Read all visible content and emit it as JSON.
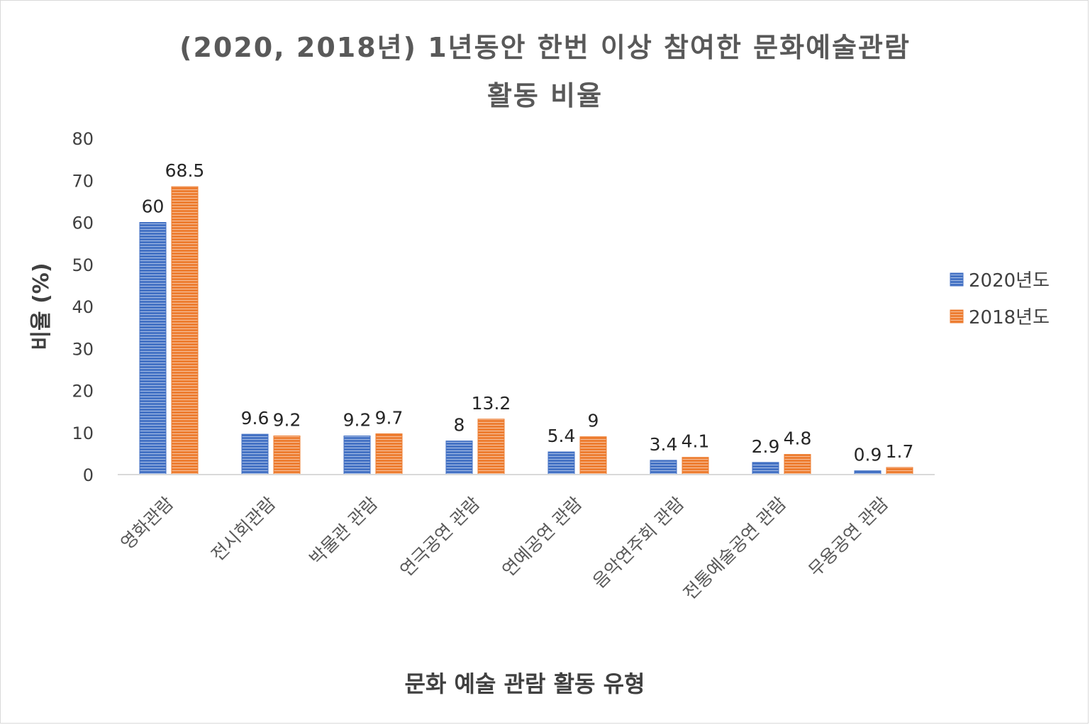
{
  "chart_data": {
    "type": "bar",
    "title_line1": "(2020, 2018년) 1년동안 한번 이상 참여한 문화예술관람",
    "title_line2": "활동 비율",
    "xlabel": "문화 예술 관람 활동 유형",
    "ylabel": "비율 (%)",
    "ylim": [
      0,
      80
    ],
    "yticks": [
      0,
      10,
      20,
      30,
      40,
      50,
      60,
      70,
      80
    ],
    "categories": [
      "영화관람",
      "전시회관람",
      "박물관 관람",
      "연극공연 관람",
      "연예공연 관람",
      "음악연주회 관람",
      "전통예술공연 관람",
      "무용공연 관람"
    ],
    "series": [
      {
        "name": "2020년도",
        "color": "#4472C4",
        "values": [
          60,
          9.6,
          9.2,
          8,
          5.4,
          3.4,
          2.9,
          0.9
        ],
        "labels": [
          "60",
          "9.6",
          "9.2",
          "8",
          "5.4",
          "3.4",
          "2.9",
          "0.9"
        ]
      },
      {
        "name": "2018년도",
        "color": "#ED7D31",
        "values": [
          68.5,
          9.2,
          9.7,
          13.2,
          9,
          4.1,
          4.8,
          1.7
        ],
        "labels": [
          "68.5",
          "9.2",
          "9.7",
          "13.2",
          "9",
          "4.1",
          "4.8",
          "1.7"
        ]
      }
    ],
    "legend_position": "right",
    "grid": false
  }
}
